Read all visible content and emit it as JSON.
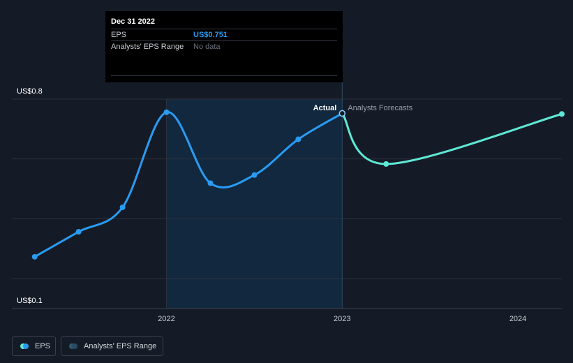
{
  "tooltip": {
    "date": "Dec 31 2022",
    "eps_label": "EPS",
    "eps_value": "US$0.751",
    "range_label": "Analysts' EPS Range",
    "range_value": "No data"
  },
  "labels": {
    "actual": "Actual",
    "forecast": "Analysts Forecasts"
  },
  "legend": {
    "eps": "EPS",
    "range": "Analysts' EPS Range"
  },
  "colors": {
    "background": "#151b26",
    "actual_line": "#2a9bf2",
    "forecast_line": "#5ee8d6",
    "highlight_band": "#12283f",
    "grid": "#2c323c"
  },
  "chart_data": {
    "type": "line",
    "y_tick_labels": [
      "US$0.8",
      "US$0.1"
    ],
    "y_ticks": [
      0.8,
      0.1
    ],
    "ylim": [
      0.08,
      0.8
    ],
    "x_ticks": [
      2022,
      2023,
      2024
    ],
    "xlim": [
      2021.12,
      2024.25
    ],
    "highlight_range": [
      2022.0,
      2023.0
    ],
    "series": [
      {
        "name": "EPS",
        "kind": "actual",
        "x": [
          2021.25,
          2021.5,
          2021.75,
          2022.0,
          2022.25,
          2022.5,
          2022.75,
          2023.0
        ],
        "y": [
          0.258,
          0.344,
          0.428,
          0.755,
          0.511,
          0.539,
          0.662,
          0.751
        ]
      },
      {
        "name": "Analysts Forecasts",
        "kind": "forecast",
        "x": [
          2023.0,
          2023.25,
          2024.25
        ],
        "y": [
          0.751,
          0.577,
          0.749
        ]
      }
    ]
  }
}
